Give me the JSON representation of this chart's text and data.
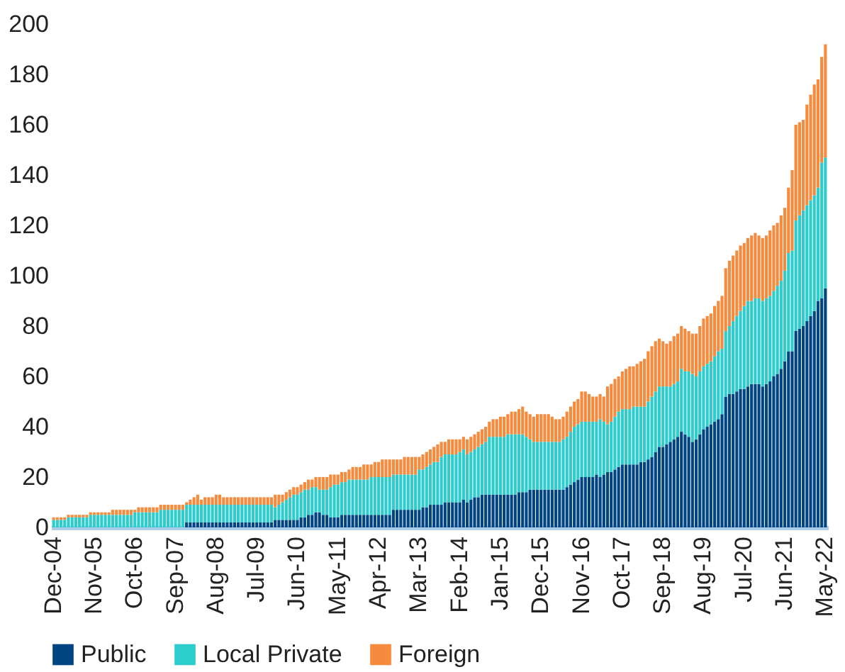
{
  "chart_data": {
    "type": "bar",
    "stacked": true,
    "legend": "bottom",
    "ylim": [
      0,
      200
    ],
    "yticks": [
      0,
      20,
      40,
      60,
      80,
      100,
      120,
      140,
      160,
      180,
      200
    ],
    "grid": false,
    "categories": [
      "Dec-04",
      null,
      null,
      null,
      null,
      null,
      null,
      null,
      null,
      null,
      null,
      "Nov-05",
      null,
      null,
      null,
      null,
      null,
      null,
      null,
      null,
      null,
      null,
      "Oct-06",
      null,
      null,
      null,
      null,
      null,
      null,
      null,
      null,
      null,
      null,
      "Sep-07",
      null,
      null,
      null,
      null,
      null,
      null,
      null,
      null,
      null,
      null,
      "Aug-08",
      null,
      null,
      null,
      null,
      null,
      null,
      null,
      null,
      null,
      null,
      "Jul-09",
      null,
      null,
      null,
      null,
      null,
      null,
      null,
      null,
      null,
      null,
      "Jun-10",
      null,
      null,
      null,
      null,
      null,
      null,
      null,
      null,
      null,
      null,
      "May-11",
      null,
      null,
      null,
      null,
      null,
      null,
      null,
      null,
      null,
      null,
      "Apr-12",
      null,
      null,
      null,
      null,
      null,
      null,
      null,
      null,
      null,
      null,
      "Mar-13",
      null,
      null,
      null,
      null,
      null,
      null,
      null,
      null,
      null,
      null,
      "Feb-14",
      null,
      null,
      null,
      null,
      null,
      null,
      null,
      null,
      null,
      null,
      "Jan-15",
      null,
      null,
      null,
      null,
      null,
      null,
      null,
      null,
      null,
      null,
      "Dec-15",
      null,
      null,
      null,
      null,
      null,
      null,
      null,
      null,
      null,
      null,
      "Nov-16",
      null,
      null,
      null,
      null,
      null,
      null,
      null,
      null,
      null,
      null,
      "Oct-17",
      null,
      null,
      null,
      null,
      null,
      null,
      null,
      null,
      null,
      null,
      "Sep-18",
      null,
      null,
      null,
      null,
      null,
      null,
      null,
      null,
      null,
      null,
      "Aug-19",
      null,
      null,
      null,
      null,
      null,
      null,
      null,
      null,
      null,
      null,
      "Jul-20",
      null,
      null,
      null,
      null,
      null,
      null,
      null,
      null,
      null,
      null,
      "Jun-21",
      null,
      null,
      null,
      null,
      null,
      null,
      null,
      null,
      null,
      null,
      "May-22"
    ],
    "series": [
      {
        "name": "Public",
        "color": "#004481",
        "values": [
          0,
          0,
          0,
          0,
          0,
          0,
          0,
          0,
          0,
          0,
          0,
          0,
          0,
          0,
          0,
          0,
          0,
          0,
          0,
          0,
          0,
          0,
          0,
          0,
          0,
          0,
          0,
          0,
          0,
          0,
          0,
          0,
          0,
          0,
          0,
          0,
          2,
          2,
          2,
          2,
          2,
          2,
          2,
          2,
          2,
          2,
          2,
          2,
          2,
          2,
          2,
          2,
          2,
          2,
          2,
          2,
          2,
          2,
          2,
          2,
          3,
          3,
          3,
          3,
          3,
          3,
          3,
          4,
          4,
          5,
          5,
          6,
          6,
          5,
          5,
          4,
          4,
          4,
          5,
          5,
          5,
          5,
          5,
          5,
          5,
          5,
          5,
          5,
          5,
          5,
          5,
          5,
          7,
          7,
          7,
          7,
          7,
          7,
          7,
          7,
          8,
          8,
          9,
          9,
          9,
          9,
          10,
          10,
          10,
          10,
          10,
          11,
          10,
          11,
          12,
          12,
          13,
          13,
          13,
          13,
          13,
          13,
          13,
          13,
          13,
          13,
          14,
          14,
          14,
          15,
          15,
          15,
          15,
          15,
          15,
          15,
          15,
          15,
          15,
          16,
          17,
          18,
          19,
          20,
          20,
          20,
          20,
          21,
          20,
          21,
          22,
          22,
          23,
          24,
          25,
          25,
          25,
          25,
          25,
          26,
          26,
          27,
          28,
          30,
          32,
          32,
          33,
          34,
          35,
          36,
          38,
          37,
          36,
          34,
          35,
          37,
          39,
          40,
          41,
          42,
          43,
          45,
          52,
          53,
          53,
          54,
          55,
          55,
          56,
          57,
          57,
          57,
          56,
          57,
          58,
          60,
          61,
          63,
          66,
          70,
          70,
          78,
          79,
          80,
          82,
          84,
          86,
          90,
          91,
          95
        ]
      },
      {
        "name": "Local Private",
        "color": "#2dcccd",
        "values": [
          3,
          3,
          3,
          3,
          4,
          4,
          4,
          4,
          4,
          4,
          5,
          5,
          5,
          5,
          5,
          5,
          5,
          5,
          5,
          5,
          5,
          5,
          6,
          6,
          6,
          6,
          6,
          6,
          6,
          7,
          7,
          7,
          7,
          7,
          7,
          7,
          7,
          7,
          7,
          7,
          7,
          7,
          7,
          7,
          7,
          7,
          7,
          7,
          7,
          7,
          7,
          7,
          7,
          7,
          7,
          7,
          7,
          7,
          7,
          7,
          5,
          6,
          7,
          8,
          9,
          10,
          10,
          10,
          11,
          10,
          11,
          10,
          9,
          10,
          10,
          12,
          13,
          13,
          13,
          13,
          14,
          14,
          14,
          14,
          14,
          14,
          15,
          15,
          15,
          15,
          15,
          15,
          14,
          14,
          14,
          14,
          14,
          14,
          14,
          16,
          15,
          16,
          16,
          17,
          17,
          19,
          19,
          19,
          19,
          19,
          20,
          20,
          19,
          19,
          19,
          20,
          20,
          21,
          23,
          23,
          23,
          23,
          23,
          24,
          24,
          24,
          23,
          23,
          22,
          20,
          19,
          19,
          19,
          19,
          19,
          19,
          19,
          19,
          20,
          20,
          21,
          22,
          22,
          22,
          22,
          22,
          22,
          21,
          23,
          21,
          19,
          20,
          21,
          22,
          22,
          22,
          22,
          23,
          23,
          22,
          22,
          23,
          24,
          24,
          24,
          24,
          23,
          22,
          22,
          22,
          25,
          25,
          26,
          27,
          25,
          25,
          25,
          25,
          25,
          26,
          27,
          26,
          26,
          27,
          29,
          30,
          31,
          33,
          34,
          33,
          34,
          34,
          34,
          34,
          34,
          34,
          35,
          35,
          36,
          39,
          40,
          44,
          45,
          46,
          46,
          46,
          46,
          45,
          54,
          52
        ]
      },
      {
        "name": "Foreign",
        "color": "#f78b3d",
        "values": [
          1,
          1,
          1,
          1,
          1,
          1,
          1,
          1,
          1,
          1,
          1,
          1,
          1,
          1,
          1,
          1,
          2,
          2,
          2,
          2,
          2,
          2,
          1,
          2,
          2,
          2,
          2,
          2,
          2,
          2,
          2,
          2,
          2,
          2,
          2,
          2,
          1,
          2,
          3,
          4,
          2,
          3,
          3,
          3,
          4,
          4,
          3,
          3,
          3,
          3,
          3,
          3,
          3,
          3,
          3,
          3,
          3,
          3,
          3,
          3,
          5,
          4,
          3,
          3,
          3,
          3,
          3,
          3,
          3,
          4,
          3,
          4,
          5,
          5,
          5,
          5,
          4,
          4,
          4,
          4,
          4,
          5,
          5,
          5,
          6,
          6,
          5,
          6,
          6,
          7,
          7,
          7,
          6,
          6,
          6,
          7,
          7,
          7,
          7,
          5,
          6,
          6,
          6,
          6,
          7,
          6,
          5,
          6,
          6,
          6,
          5,
          5,
          6,
          6,
          6,
          6,
          6,
          6,
          6,
          7,
          7,
          8,
          8,
          8,
          9,
          9,
          10,
          11,
          10,
          10,
          10,
          11,
          11,
          11,
          11,
          10,
          9,
          9,
          9,
          10,
          10,
          10,
          10,
          12,
          12,
          11,
          10,
          10,
          10,
          10,
          15,
          15,
          15,
          14,
          15,
          16,
          17,
          16,
          17,
          18,
          19,
          20,
          20,
          20,
          19,
          18,
          17,
          18,
          19,
          19,
          17,
          17,
          16,
          16,
          17,
          18,
          19,
          19,
          19,
          20,
          20,
          21,
          25,
          26,
          26,
          26,
          26,
          25,
          25,
          26,
          26,
          25,
          25,
          25,
          26,
          26,
          25,
          26,
          25,
          26,
          32,
          38,
          37,
          36,
          40,
          42,
          44,
          43,
          42,
          45
        ]
      }
    ]
  }
}
